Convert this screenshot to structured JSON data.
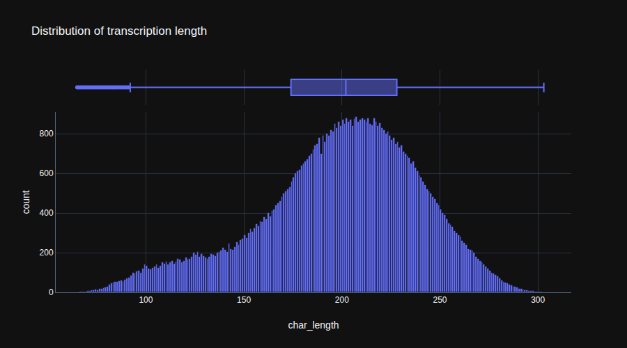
{
  "chart_data": {
    "type": "histogram",
    "title": "Distribution of transcription length",
    "x_label": "char_length",
    "y_label": "count",
    "color": "#636efa",
    "grid": true,
    "xlim": [
      54,
      317
    ],
    "xticks": [
      100,
      150,
      200,
      250,
      300
    ],
    "ylim": [
      0,
      910
    ],
    "yticks": [
      0,
      200,
      400,
      600,
      800
    ],
    "bins": [
      65,
      66,
      67,
      68,
      69,
      70,
      71,
      72,
      73,
      74,
      75,
      76,
      77,
      78,
      79,
      80,
      81,
      82,
      83,
      84,
      85,
      86,
      87,
      88,
      89,
      90,
      91,
      92,
      93,
      94,
      95,
      96,
      97,
      98,
      99,
      100,
      101,
      102,
      103,
      104,
      105,
      106,
      107,
      108,
      109,
      110,
      111,
      112,
      113,
      114,
      115,
      116,
      117,
      118,
      119,
      120,
      121,
      122,
      123,
      124,
      125,
      126,
      127,
      128,
      129,
      130,
      131,
      132,
      133,
      134,
      135,
      136,
      137,
      138,
      139,
      140,
      141,
      142,
      143,
      144,
      145,
      146,
      147,
      148,
      149,
      150,
      151,
      152,
      153,
      154,
      155,
      156,
      157,
      158,
      159,
      160,
      161,
      162,
      163,
      164,
      165,
      166,
      167,
      168,
      169,
      170,
      171,
      172,
      173,
      174,
      175,
      176,
      177,
      178,
      179,
      180,
      181,
      182,
      183,
      184,
      185,
      186,
      187,
      188,
      189,
      190,
      191,
      192,
      193,
      194,
      195,
      196,
      197,
      198,
      199,
      200,
      201,
      202,
      203,
      204,
      205,
      206,
      207,
      208,
      209,
      210,
      211,
      212,
      213,
      214,
      215,
      216,
      217,
      218,
      219,
      220,
      221,
      222,
      223,
      224,
      225,
      226,
      227,
      228,
      229,
      230,
      231,
      232,
      233,
      234,
      235,
      236,
      237,
      238,
      239,
      240,
      241,
      242,
      243,
      244,
      245,
      246,
      247,
      248,
      249,
      250,
      251,
      252,
      253,
      254,
      255,
      256,
      257,
      258,
      259,
      260,
      261,
      262,
      263,
      264,
      265,
      266,
      267,
      268,
      269,
      270,
      271,
      272,
      273,
      274,
      275,
      276,
      277,
      278,
      279,
      280,
      281,
      282,
      283,
      284,
      285,
      286,
      287,
      288,
      289,
      290,
      291,
      292,
      293,
      294,
      295,
      296,
      297,
      298,
      299,
      300,
      301,
      302,
      303,
      304,
      305
    ],
    "counts": [
      2,
      3,
      3,
      5,
      5,
      8,
      8,
      10,
      12,
      15,
      13,
      18,
      20,
      22,
      25,
      30,
      40,
      45,
      50,
      55,
      52,
      58,
      60,
      55,
      65,
      70,
      75,
      85,
      100,
      95,
      105,
      110,
      100,
      120,
      140,
      135,
      120,
      115,
      125,
      130,
      140,
      125,
      135,
      150,
      145,
      155,
      140,
      150,
      160,
      145,
      155,
      170,
      165,
      150,
      160,
      175,
      165,
      170,
      180,
      200,
      190,
      205,
      180,
      195,
      185,
      175,
      170,
      180,
      195,
      190,
      185,
      200,
      205,
      210,
      225,
      215,
      205,
      245,
      220,
      215,
      230,
      255,
      240,
      265,
      270,
      290,
      275,
      300,
      320,
      305,
      325,
      345,
      335,
      360,
      355,
      380,
      370,
      400,
      385,
      410,
      420,
      440,
      450,
      460,
      480,
      500,
      510,
      520,
      530,
      560,
      580,
      600,
      610,
      620,
      640,
      650,
      660,
      670,
      690,
      700,
      720,
      740,
      750,
      780,
      700,
      790,
      760,
      800,
      790,
      820,
      810,
      850,
      830,
      860,
      840,
      870,
      850,
      880,
      860,
      870,
      840,
      875,
      885,
      860,
      870,
      880,
      870,
      860,
      880,
      850,
      845,
      880,
      860,
      840,
      855,
      830,
      820,
      800,
      810,
      790,
      770,
      780,
      750,
      760,
      730,
      740,
      710,
      700,
      690,
      680,
      650,
      660,
      630,
      610,
      590,
      580,
      560,
      540,
      520,
      510,
      500,
      480,
      470,
      450,
      440,
      420,
      400,
      390,
      370,
      350,
      340,
      330,
      310,
      300,
      290,
      280,
      260,
      250,
      240,
      220,
      215,
      210,
      200,
      180,
      170,
      160,
      150,
      140,
      130,
      120,
      110,
      100,
      95,
      90,
      80,
      70,
      62,
      55,
      50,
      45,
      40,
      35,
      30,
      28,
      25,
      20,
      18,
      15,
      12,
      10,
      8,
      7,
      6,
      5,
      4,
      3,
      3,
      2,
      2,
      1
    ],
    "box": {
      "q1": 174,
      "median": 202,
      "q3": 228,
      "lowerfence": 92,
      "upperfence": 303,
      "outliers": [
        65,
        66,
        67,
        68,
        69,
        70,
        71,
        72,
        73,
        74,
        75,
        76,
        77,
        78,
        79,
        80,
        81,
        82,
        83,
        84,
        85,
        86,
        87,
        88,
        89,
        90,
        91
      ]
    }
  }
}
